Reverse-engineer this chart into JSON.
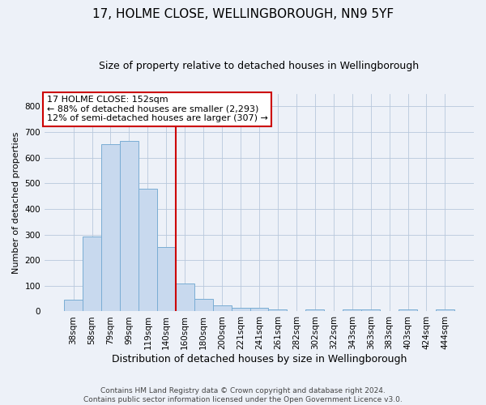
{
  "title": "17, HOLME CLOSE, WELLINGBOROUGH, NN9 5YF",
  "subtitle": "Size of property relative to detached houses in Wellingborough",
  "xlabel": "Distribution of detached houses by size in Wellingborough",
  "ylabel": "Number of detached properties",
  "categories": [
    "38sqm",
    "58sqm",
    "79sqm",
    "99sqm",
    "119sqm",
    "140sqm",
    "160sqm",
    "180sqm",
    "200sqm",
    "221sqm",
    "241sqm",
    "261sqm",
    "282sqm",
    "302sqm",
    "322sqm",
    "343sqm",
    "363sqm",
    "383sqm",
    "403sqm",
    "424sqm",
    "444sqm"
  ],
  "values": [
    45,
    293,
    652,
    665,
    478,
    252,
    110,
    50,
    25,
    14,
    14,
    8,
    0,
    8,
    0,
    8,
    8,
    0,
    8,
    0,
    8
  ],
  "bar_color": "#c8d9ee",
  "bar_edge_color": "#7aadd4",
  "vline_x_index": 6,
  "vline_color": "#cc0000",
  "annotation_text": "17 HOLME CLOSE: 152sqm\n← 88% of detached houses are smaller (2,293)\n12% of semi-detached houses are larger (307) →",
  "annotation_box_facecolor": "#ffffff",
  "annotation_box_edgecolor": "#cc0000",
  "ylim": [
    0,
    850
  ],
  "yticks": [
    0,
    100,
    200,
    300,
    400,
    500,
    600,
    700,
    800
  ],
  "footer_line1": "Contains HM Land Registry data © Crown copyright and database right 2024.",
  "footer_line2": "Contains public sector information licensed under the Open Government Licence v3.0.",
  "bg_color": "#edf1f8",
  "plot_bg_color": "#edf1f8",
  "title_fontsize": 11,
  "subtitle_fontsize": 9,
  "xlabel_fontsize": 9,
  "ylabel_fontsize": 8,
  "tick_fontsize": 7.5,
  "footer_fontsize": 6.5,
  "annotation_fontsize": 8
}
